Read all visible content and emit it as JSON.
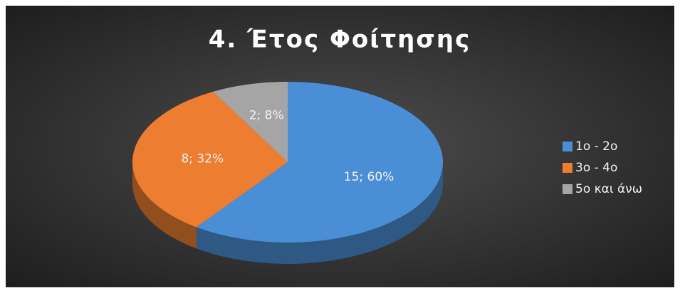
{
  "chart_data": {
    "type": "pie",
    "title": "4. Έτος Φοίτησης",
    "categories": [
      "1ο - 2ο",
      "3ο - 4ο",
      "5ο και άνω"
    ],
    "values": [
      15,
      8,
      2
    ],
    "value_labels": [
      "15; 60%",
      "8; 32%",
      "2; 8%"
    ],
    "colors": [
      "#4a8fd6",
      "#ed7d31",
      "#a5a5a5"
    ],
    "legend": "right"
  }
}
